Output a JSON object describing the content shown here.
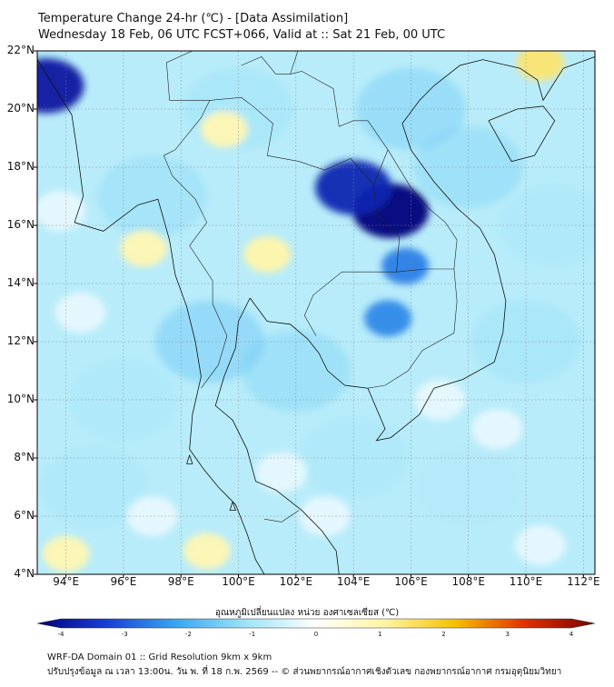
{
  "title": {
    "line1": "Temperature Change 24-hr (℃) - [Data Assimilation]",
    "line2": "Wednesday 18 Feb, 06 UTC FCST+066, Valid at :: Sat 21 Feb, 00 UTC"
  },
  "map": {
    "lat_range": [
      4,
      22
    ],
    "lon_range": [
      93,
      112.4
    ],
    "lat_ticks": [
      "4°N",
      "6°N",
      "8°N",
      "10°N",
      "12°N",
      "14°N",
      "16°N",
      "18°N",
      "20°N",
      "22°N"
    ],
    "lon_ticks": [
      "94°E",
      "96°E",
      "98°E",
      "100°E",
      "102°E",
      "104°E",
      "106°E",
      "108°E",
      "110°E",
      "112°E"
    ],
    "grid": true,
    "field_features": [
      {
        "kind": "cold",
        "lon": 105.3,
        "lat": 16.5,
        "value": -4.0
      },
      {
        "kind": "cold",
        "lon": 104.0,
        "lat": 17.3,
        "value": -3.4
      },
      {
        "kind": "cold",
        "lon": 93.3,
        "lat": 20.8,
        "value": -3.6
      },
      {
        "kind": "cold",
        "lon": 105.8,
        "lat": 14.6,
        "value": -2.4
      },
      {
        "kind": "cold",
        "lon": 105.2,
        "lat": 12.8,
        "value": -2.3
      },
      {
        "kind": "warm",
        "lon": 101.0,
        "lat": 15.0,
        "value": 0.9
      },
      {
        "kind": "warm",
        "lon": 99.5,
        "lat": 19.3,
        "value": 0.8
      },
      {
        "kind": "warm",
        "lon": 110.5,
        "lat": 21.6,
        "value": 1.3
      },
      {
        "kind": "warm",
        "lon": 96.7,
        "lat": 15.2,
        "value": 0.8
      },
      {
        "kind": "warm",
        "lon": 98.9,
        "lat": 4.8,
        "value": 0.8
      },
      {
        "kind": "warm",
        "lon": 94.0,
        "lat": 4.7,
        "value": 0.8
      }
    ]
  },
  "colorbar": {
    "label": "อุณหภูมิเปลี่ยนแปลง หน่วย องศาเซลเซียส (℃)",
    "min": -4,
    "max": 4,
    "ticks": [
      "-4",
      "-3",
      "-2",
      "-1",
      "0",
      "1",
      "2",
      "3",
      "4"
    ],
    "colors": [
      "#00007a",
      "#1a3fd6",
      "#38a8f0",
      "#9fe4f8",
      "#ffffff",
      "#fff5a0",
      "#f5c000",
      "#e03000",
      "#7a0000"
    ]
  },
  "footer": {
    "line1": "WRF-DA Domain 01 :: Grid Resolution 9km x 9km",
    "line2": "ปรับปรุงข้อมูล ณ เวลา 13:00น. วัน พ. ที่ 18 ก.พ. 2569 -- © ส่วนพยากรณ์อากาศเชิงตัวเลข กองพยากรณ์อากาศ กรมอุตุนิยมวิทยา"
  }
}
